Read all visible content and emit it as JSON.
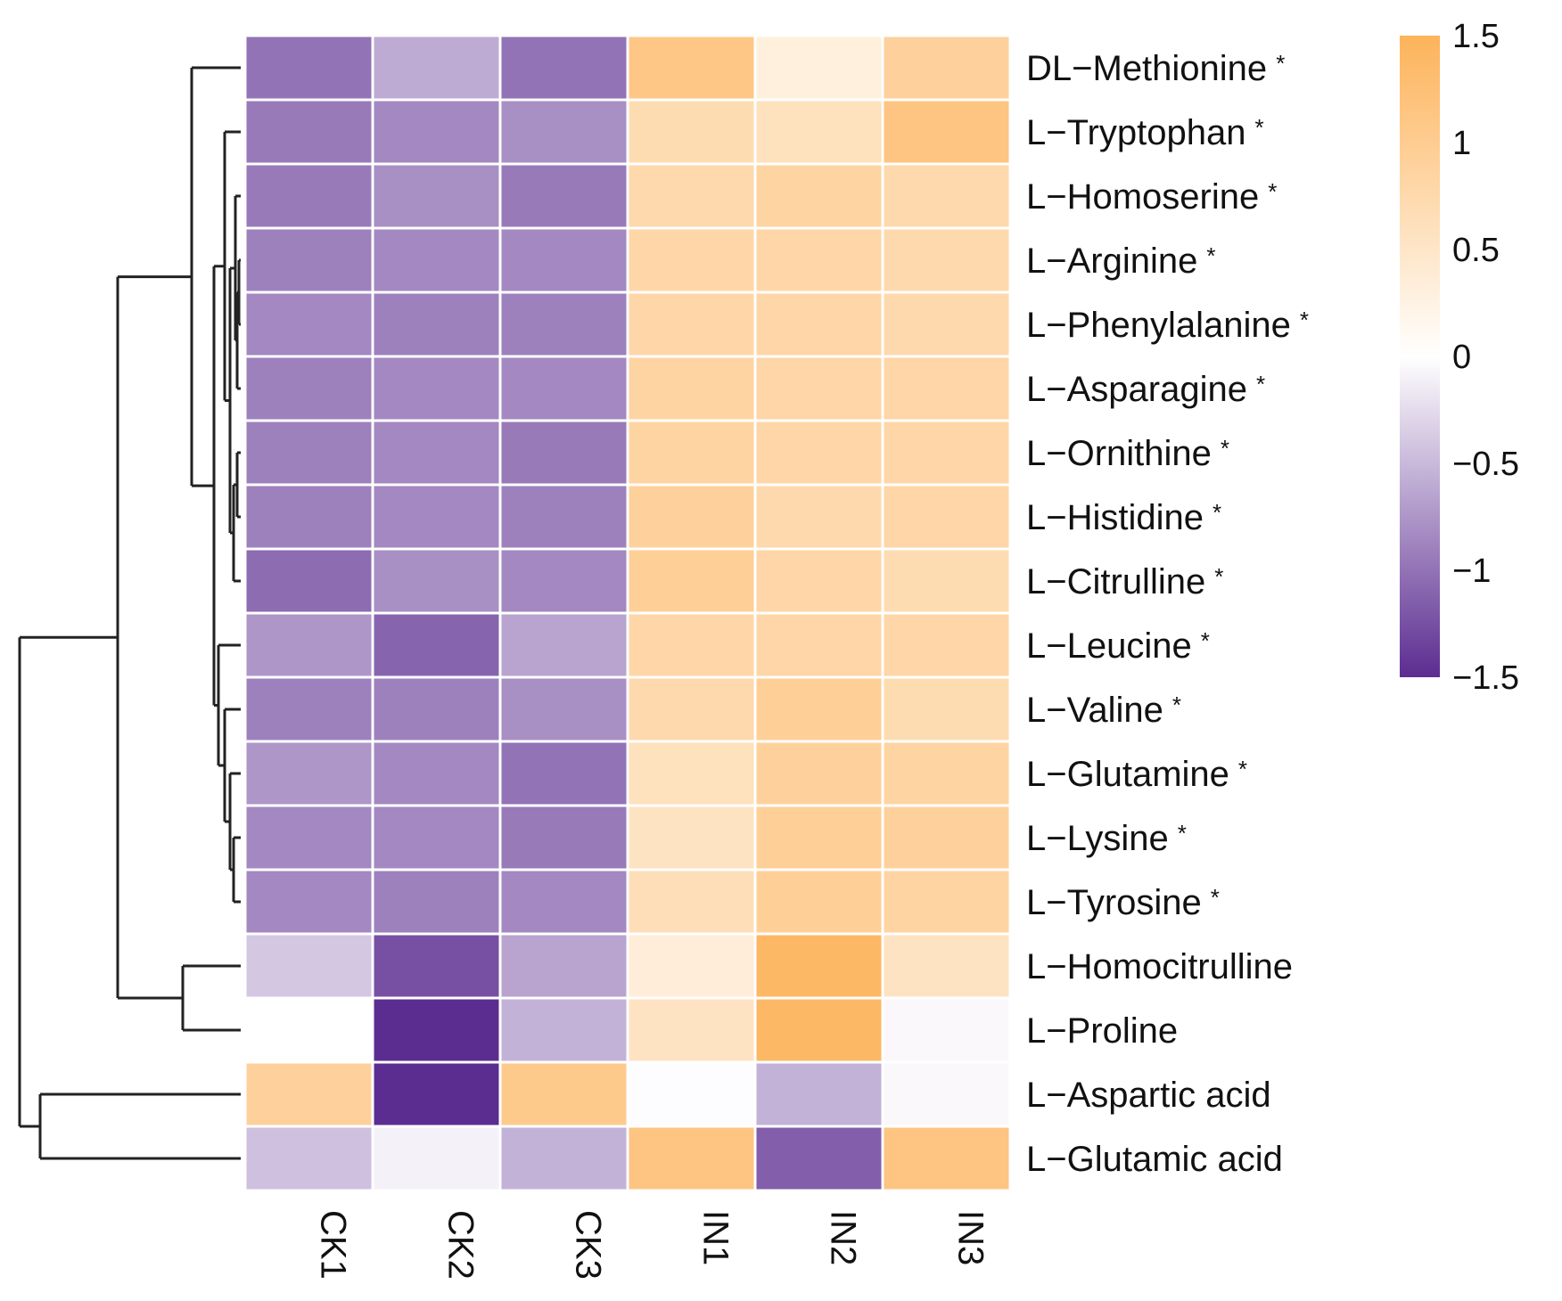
{
  "chart_data": {
    "type": "heatmap",
    "columns": [
      "CK1",
      "CK2",
      "CK3",
      "IN1",
      "IN2",
      "IN3"
    ],
    "rows": [
      {
        "label": "DL−Methionine",
        "star": "*",
        "values": [
          -1.0,
          -0.6,
          -1.0,
          1.1,
          0.3,
          0.9
        ]
      },
      {
        "label": "L−Tryptophan",
        "star": "*",
        "values": [
          -0.95,
          -0.85,
          -0.8,
          0.7,
          0.6,
          1.15
        ]
      },
      {
        "label": "L−Homoserine",
        "star": "*",
        "values": [
          -0.95,
          -0.8,
          -0.95,
          0.75,
          0.85,
          0.75
        ]
      },
      {
        "label": "L−Arginine",
        "star": "*",
        "values": [
          -0.9,
          -0.85,
          -0.85,
          0.8,
          0.8,
          0.75
        ]
      },
      {
        "label": "L−Phenylalanine",
        "star": "*",
        "values": [
          -0.85,
          -0.9,
          -0.9,
          0.8,
          0.8,
          0.75
        ]
      },
      {
        "label": "L−Asparagine",
        "star": "*",
        "values": [
          -0.9,
          -0.85,
          -0.85,
          0.85,
          0.8,
          0.8
        ]
      },
      {
        "label": "L−Ornithine",
        "star": "*",
        "values": [
          -0.9,
          -0.85,
          -0.95,
          0.85,
          0.8,
          0.8
        ]
      },
      {
        "label": "L−Histidine",
        "star": "*",
        "values": [
          -0.9,
          -0.85,
          -0.9,
          0.9,
          0.75,
          0.8
        ]
      },
      {
        "label": "L−Citrulline",
        "star": "*",
        "values": [
          -1.05,
          -0.8,
          -0.85,
          0.95,
          0.8,
          0.7
        ]
      },
      {
        "label": "L−Leucine",
        "star": "*",
        "values": [
          -0.75,
          -1.1,
          -0.65,
          0.8,
          0.8,
          0.8
        ]
      },
      {
        "label": "L−Valine",
        "star": "*",
        "values": [
          -0.9,
          -0.9,
          -0.8,
          0.75,
          0.95,
          0.7
        ]
      },
      {
        "label": "L−Glutamine",
        "star": "*",
        "values": [
          -0.75,
          -0.85,
          -1.0,
          0.6,
          0.9,
          0.85
        ]
      },
      {
        "label": "L−Lysine",
        "star": "*",
        "values": [
          -0.85,
          -0.85,
          -0.95,
          0.55,
          0.95,
          0.9
        ]
      },
      {
        "label": "L−Tyrosine",
        "star": "*",
        "values": [
          -0.85,
          -0.9,
          -0.85,
          0.65,
          0.95,
          0.85
        ]
      },
      {
        "label": "L−Homocitrulline",
        "star": "",
        "values": [
          -0.4,
          -1.25,
          -0.65,
          0.35,
          1.4,
          0.55
        ]
      },
      {
        "label": "L−Proline",
        "star": "",
        "values": [
          0.0,
          -1.6,
          -0.55,
          0.55,
          1.4,
          -0.05
        ]
      },
      {
        "label": "L−Aspartic acid",
        "star": "",
        "values": [
          0.9,
          -1.6,
          1.05,
          -0.02,
          -0.55,
          -0.05
        ]
      },
      {
        "label": "L−Glutamic acid",
        "star": "",
        "values": [
          -0.45,
          -0.1,
          -0.55,
          1.15,
          -1.15,
          1.15
        ]
      }
    ],
    "colorbar": {
      "min": -1.5,
      "max": 1.5,
      "ticks": [
        {
          "value": 1.5,
          "label": "1.5"
        },
        {
          "value": 1.0,
          "label": "1"
        },
        {
          "value": 0.5,
          "label": "0.5"
        },
        {
          "value": 0.0,
          "label": "0"
        },
        {
          "value": -0.5,
          "label": "−0.5"
        },
        {
          "value": -1.0,
          "label": "−1"
        },
        {
          "value": -1.5,
          "label": "−1.5"
        }
      ],
      "colors": {
        "low": "#5c2d91",
        "mid": "#ffffff",
        "high": "#fdb35a"
      }
    },
    "row_dendrogram": true,
    "title": "",
    "xlabel": "",
    "ylabel": ""
  }
}
